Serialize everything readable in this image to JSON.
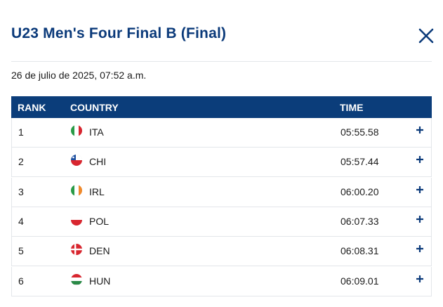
{
  "header": {
    "title": "U23 Men's Four Final B (Final)"
  },
  "date": "26 de julio de 2025, 07:52 a.m.",
  "table": {
    "columns": [
      "RANK",
      "COUNTRY",
      "TIME"
    ],
    "rows": [
      [
        1,
        "ITA",
        "05:55.58"
      ],
      [
        2,
        "CHI",
        "05:57.44"
      ],
      [
        3,
        "IRL",
        "06:00.20"
      ],
      [
        4,
        "POL",
        "06:07.33"
      ],
      [
        5,
        "DEN",
        "06:08.31"
      ],
      [
        6,
        "HUN",
        "06:09.01"
      ]
    ]
  }
}
